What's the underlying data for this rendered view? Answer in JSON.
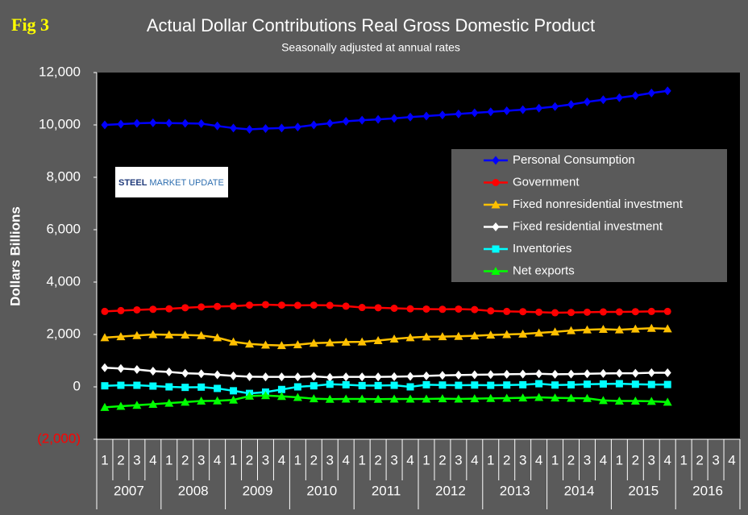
{
  "chart_data": {
    "type": "line",
    "figure_label": "Fig 3",
    "title": "Actual Dollar Contributions Real Gross Domestic Product",
    "subtitle": "Seasonally adjusted at annual rates",
    "y_label": "Dollars Billions",
    "logo": {
      "bold": "STEEL",
      "rest": "MARKET UPDATE"
    },
    "categories": [
      "1",
      "2",
      "3",
      "4",
      "1",
      "2",
      "3",
      "4",
      "1",
      "2",
      "3",
      "4",
      "1",
      "2",
      "3",
      "4",
      "1",
      "2",
      "3",
      "4",
      "1",
      "2",
      "3",
      "4",
      "1",
      "2",
      "3",
      "4",
      "1",
      "2",
      "3",
      "4",
      "1",
      "2",
      "3",
      "4",
      "1",
      "2",
      "3",
      "4"
    ],
    "years": [
      "2007",
      "2008",
      "2009",
      "2010",
      "2011",
      "2012",
      "2013",
      "2014",
      "2015",
      "2016"
    ],
    "ylim": [
      -2000,
      12000
    ],
    "yticks": [
      {
        "value": -2000,
        "label": "(2,000)"
      },
      0,
      {
        "value": 2000,
        "label": "2,000"
      },
      {
        "value": 4000,
        "label": "4,000"
      },
      {
        "value": 6000,
        "label": "6,000"
      },
      {
        "value": 8000,
        "label": "8,000"
      },
      {
        "value": 10000,
        "label": "10,000"
      },
      {
        "value": 12000,
        "label": "12,000"
      }
    ],
    "negative_tick_color": "#ff0000",
    "grid": false,
    "series": [
      {
        "name": "Personal Consumption",
        "color": "#0000ff",
        "marker": "diamond",
        "values": [
          10000,
          10030,
          10060,
          10080,
          10070,
          10060,
          10050,
          9960,
          9880,
          9830,
          9860,
          9880,
          9920,
          10000,
          10060,
          10140,
          10180,
          10210,
          10250,
          10300,
          10340,
          10380,
          10420,
          10460,
          10500,
          10540,
          10580,
          10640,
          10700,
          10780,
          10880,
          10960,
          11040,
          11120,
          11220,
          11300,
          null,
          null,
          null,
          null
        ]
      },
      {
        "name": "Government",
        "color": "#ff0000",
        "marker": "circle",
        "values": [
          2880,
          2910,
          2940,
          2960,
          2980,
          3020,
          3050,
          3070,
          3080,
          3120,
          3140,
          3120,
          3110,
          3120,
          3110,
          3080,
          3030,
          3020,
          3000,
          2980,
          2970,
          2960,
          2970,
          2950,
          2900,
          2880,
          2870,
          2850,
          2830,
          2840,
          2850,
          2860,
          2860,
          2870,
          2880,
          2880,
          null,
          null,
          null,
          null
        ]
      },
      {
        "name": "Fixed nonresidential investment",
        "color": "#ffc000",
        "marker": "triangle",
        "values": [
          1880,
          1920,
          1960,
          2000,
          1990,
          1980,
          1960,
          1880,
          1720,
          1640,
          1600,
          1580,
          1610,
          1670,
          1690,
          1710,
          1720,
          1770,
          1830,
          1880,
          1910,
          1920,
          1930,
          1950,
          1980,
          2000,
          2020,
          2060,
          2100,
          2150,
          2180,
          2200,
          2180,
          2210,
          2240,
          2220,
          null,
          null,
          null,
          null
        ]
      },
      {
        "name": "Fixed residential investment",
        "color": "#ffffff",
        "marker": "diamond",
        "values": [
          730,
          700,
          660,
          600,
          570,
          520,
          500,
          460,
          420,
          390,
          380,
          380,
          380,
          400,
          360,
          380,
          380,
          380,
          390,
          400,
          420,
          440,
          450,
          460,
          470,
          480,
          490,
          500,
          480,
          490,
          500,
          510,
          520,
          520,
          540,
          540,
          null,
          null,
          null,
          null
        ]
      },
      {
        "name": "Inventories",
        "color": "#00ffff",
        "marker": "square",
        "values": [
          40,
          60,
          60,
          30,
          0,
          -20,
          -10,
          -60,
          -150,
          -250,
          -200,
          -100,
          0,
          40,
          100,
          80,
          50,
          50,
          60,
          0,
          80,
          70,
          60,
          70,
          60,
          70,
          80,
          120,
          70,
          80,
          100,
          110,
          120,
          100,
          90,
          90,
          null,
          null,
          null,
          null
        ]
      },
      {
        "name": "Net exports",
        "color": "#00ff00",
        "marker": "triangle",
        "values": [
          -780,
          -740,
          -700,
          -660,
          -620,
          -580,
          -540,
          -530,
          -500,
          -350,
          -330,
          -360,
          -400,
          -450,
          -470,
          -460,
          -460,
          -470,
          -460,
          -460,
          -460,
          -450,
          -460,
          -450,
          -440,
          -430,
          -420,
          -400,
          -420,
          -430,
          -440,
          -520,
          -540,
          -540,
          -550,
          -580,
          null,
          null,
          null,
          null
        ]
      }
    ]
  }
}
